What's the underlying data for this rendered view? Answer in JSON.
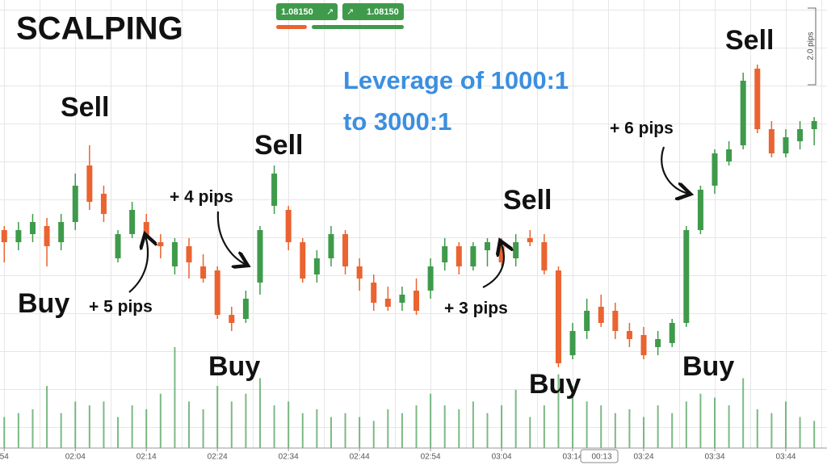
{
  "chart_data": {
    "type": "candlestick",
    "title": "SCALPING",
    "subtitle": [
      "Leverage of 1000:1",
      "to 3000:1"
    ],
    "annotations": [
      "Sell",
      "Sell",
      "Sell",
      "Sell",
      "Buy",
      "Buy",
      "Buy",
      "Buy",
      "+ 5 pips",
      "+ 4 pips",
      "+ 3 pips",
      "+ 6 pips"
    ],
    "bid_price": "1.08150",
    "ask_price": "1.08150",
    "scale_label": "2.0 pips",
    "time_marker": "00:13",
    "up_color": "#3f9a4b",
    "down_color": "#ea6330",
    "open": [
      1.08123,
      1.0812,
      1.08122,
      1.08124,
      1.0812,
      1.08125,
      1.08139,
      1.08132,
      1.08116,
      1.08122,
      1.08125,
      1.0812,
      1.08114,
      1.08119,
      1.08114,
      1.08113,
      1.08102,
      1.08101,
      1.0811,
      1.08129,
      1.08128,
      1.0812,
      1.08112,
      1.08116,
      1.08122,
      1.08114,
      1.0811,
      1.08106,
      1.08105,
      1.08108,
      1.08108,
      1.08115,
      1.08119,
      1.08114,
      1.08118,
      1.08119,
      1.08116,
      1.08121,
      1.0812,
      1.08113,
      1.08092,
      1.08098,
      1.08104,
      1.08103,
      1.08098,
      1.08097,
      1.08094,
      1.08095,
      1.081,
      1.08123,
      1.08134,
      1.0814,
      1.08144,
      1.08163,
      1.08148,
      1.08142,
      1.08145,
      1.08148
    ],
    "close": [
      1.0812,
      1.08123,
      1.08125,
      1.08119,
      1.08125,
      1.08134,
      1.0813,
      1.08127,
      1.08122,
      1.08128,
      1.08121,
      1.08119,
      1.0812,
      1.08115,
      1.08111,
      1.08102,
      1.081,
      1.08106,
      1.08123,
      1.08137,
      1.0812,
      1.08111,
      1.08116,
      1.08122,
      1.08114,
      1.08111,
      1.08105,
      1.08104,
      1.08107,
      1.08103,
      1.08114,
      1.08119,
      1.08114,
      1.08119,
      1.0812,
      1.08115,
      1.0812,
      1.0812,
      1.08113,
      1.0809,
      1.08098,
      1.08103,
      1.081,
      1.08098,
      1.08096,
      1.08092,
      1.08096,
      1.081,
      1.08123,
      1.08133,
      1.08142,
      1.08143,
      1.0816,
      1.08148,
      1.08142,
      1.08146,
      1.08148,
      1.0815
    ],
    "high": [
      1.08124,
      1.08125,
      1.08127,
      1.08126,
      1.08127,
      1.08137,
      1.08144,
      1.08134,
      1.08123,
      1.0813,
      1.08127,
      1.08122,
      1.08121,
      1.08121,
      1.08117,
      1.08114,
      1.08104,
      1.08108,
      1.08124,
      1.08139,
      1.08129,
      1.08121,
      1.08118,
      1.08124,
      1.08123,
      1.08116,
      1.08112,
      1.08109,
      1.08109,
      1.08111,
      1.08116,
      1.08121,
      1.0812,
      1.0812,
      1.08121,
      1.08121,
      1.08122,
      1.08123,
      1.08122,
      1.08114,
      1.081,
      1.08106,
      1.08107,
      1.08105,
      1.081,
      1.08099,
      1.08098,
      1.08101,
      1.08124,
      1.08134,
      1.08143,
      1.08145,
      1.08162,
      1.08164,
      1.0815,
      1.08148,
      1.0815,
      1.08151
    ],
    "low": [
      1.08115,
      1.08118,
      1.0812,
      1.08114,
      1.08118,
      1.08123,
      1.08128,
      1.08125,
      1.08115,
      1.08121,
      1.0812,
      1.08116,
      1.08112,
      1.08111,
      1.0811,
      1.08101,
      1.08098,
      1.081,
      1.08107,
      1.08127,
      1.08118,
      1.0811,
      1.0811,
      1.08114,
      1.08112,
      1.08108,
      1.08103,
      1.08103,
      1.08103,
      1.08102,
      1.08106,
      1.08113,
      1.08112,
      1.08113,
      1.08114,
      1.08114,
      1.08114,
      1.08119,
      1.08112,
      1.08089,
      1.08091,
      1.08096,
      1.08099,
      1.08096,
      1.08094,
      1.08091,
      1.08092,
      1.08094,
      1.08099,
      1.08122,
      1.08132,
      1.08139,
      1.08143,
      1.08147,
      1.08141,
      1.08141,
      1.08143,
      1.08144
    ],
    "volume": [
      40,
      45,
      50,
      80,
      45,
      60,
      55,
      60,
      40,
      55,
      50,
      70,
      130,
      60,
      50,
      80,
      60,
      70,
      90,
      55,
      60,
      45,
      50,
      40,
      45,
      40,
      35,
      50,
      45,
      55,
      70,
      55,
      50,
      60,
      45,
      55,
      75,
      40,
      55,
      95,
      80,
      60,
      55,
      45,
      50,
      40,
      55,
      45,
      60,
      70,
      65,
      55,
      90,
      50,
      45,
      60,
      40,
      35
    ],
    "volume_color": "#5aa866",
    "volume_ylim": [
      0,
      130
    ],
    "ylim": [
      1.0807,
      1.0818
    ],
    "xlim": [
      -0.3,
      57.9
    ],
    "xticks": [
      {
        "value": 0,
        "label": "54"
      },
      {
        "value": 5,
        "label": "02:04"
      },
      {
        "value": 10,
        "label": "02:14"
      },
      {
        "value": 15,
        "label": "02:24"
      },
      {
        "value": 20,
        "label": "02:34"
      },
      {
        "value": 25,
        "label": "02:44"
      },
      {
        "value": 30,
        "label": "02:54"
      },
      {
        "value": 35,
        "label": "03:04"
      },
      {
        "value": 40,
        "label": "03:14"
      },
      {
        "value": 45,
        "label": "03:24"
      },
      {
        "value": 50,
        "label": "03:34"
      },
      {
        "value": 55,
        "label": "03:44"
      }
    ]
  }
}
